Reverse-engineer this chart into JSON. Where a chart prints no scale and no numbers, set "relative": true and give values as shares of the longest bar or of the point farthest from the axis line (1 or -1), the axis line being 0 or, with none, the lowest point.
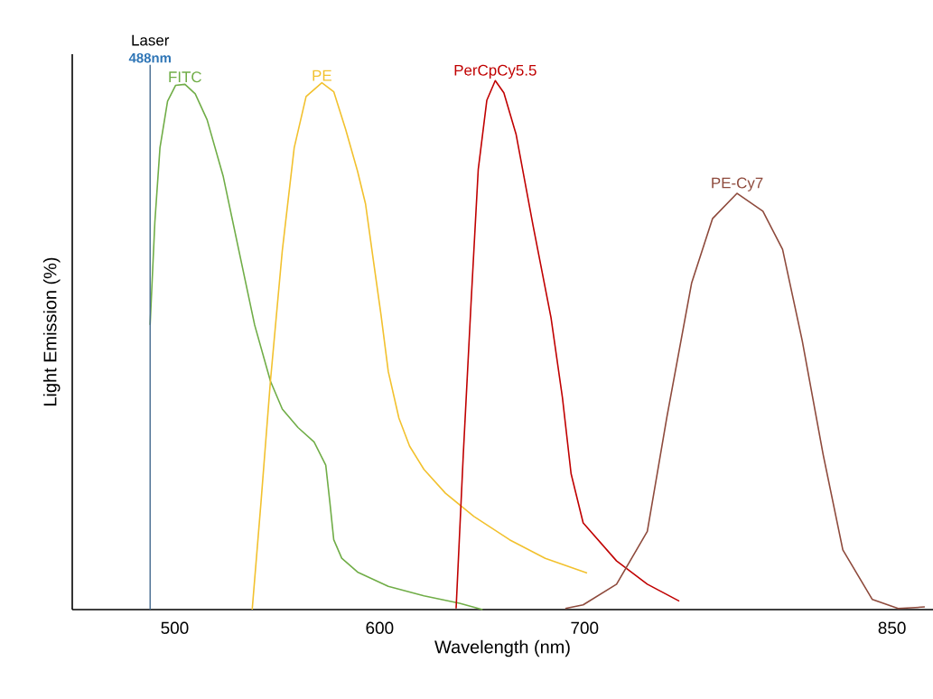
{
  "chart_data": {
    "type": "line",
    "relative": true,
    "xlabel": "Wavelength (nm)",
    "ylabel": "Light Emission (%)",
    "xlim": [
      450,
      870
    ],
    "xticks": [
      500,
      600,
      700,
      850
    ],
    "annotations": [
      "Laser"
    ],
    "ref_lines": [
      {
        "axis": "x",
        "value": 488,
        "label": "488nm",
        "color": "#44698f"
      }
    ],
    "series": [
      {
        "name": "FITC",
        "color": "#70ad47",
        "x": [
          488,
          490.3,
          492.8,
          496.5,
          500.4,
          505,
          510,
          515.8,
          523.6,
          531.3,
          539,
          546.7,
          552.5,
          560.2,
          568,
          573.7,
          575.7,
          577.6,
          581.5,
          589.2,
          604.2,
          621.6,
          639,
          650.2
        ],
        "values": [
          0.538,
          0.732,
          0.873,
          0.961,
          0.991,
          0.993,
          0.975,
          0.926,
          0.82,
          0.679,
          0.538,
          0.432,
          0.379,
          0.344,
          0.317,
          0.273,
          0.203,
          0.132,
          0.097,
          0.071,
          0.044,
          0.026,
          0.012,
          0
        ]
      },
      {
        "name": "PE",
        "color": "#f2c12e",
        "x": [
          537.8,
          542.1,
          546.7,
          552.5,
          558.3,
          564.1,
          571.8,
          577.6,
          583.4,
          589.2,
          593.1,
          596.9,
          600.7,
          604.2,
          609.4,
          614.6,
          621.6,
          632.1,
          646,
          663.4,
          680.8,
          701.2
        ],
        "values": [
          0,
          0.203,
          0.432,
          0.679,
          0.873,
          0.97,
          0.996,
          0.979,
          0.908,
          0.829,
          0.767,
          0.661,
          0.556,
          0.45,
          0.362,
          0.309,
          0.265,
          0.22,
          0.176,
          0.132,
          0.097,
          0.069
        ]
      },
      {
        "name": "PerCpCy5.5",
        "color": "#c00000",
        "x": [
          637.3,
          640.8,
          644.6,
          648.1,
          652.3,
          656.4,
          660.6,
          666.6,
          674.9,
          683.6,
          689.2,
          693.4,
          699.3,
          715.6,
          730.6,
          746.2
        ],
        "values": [
          0.002,
          0.293,
          0.58,
          0.832,
          0.963,
          1,
          0.977,
          0.898,
          0.725,
          0.552,
          0.4,
          0.257,
          0.164,
          0.092,
          0.048,
          0.016
        ]
      },
      {
        "name": "PE-Cy7",
        "color": "#8e4a3c",
        "x": [
          690.6,
          699.3,
          715.6,
          730.6,
          740.2,
          752.2,
          762.4,
          774.4,
          787,
          796.6,
          806.2,
          816.4,
          826,
          840.4,
          853,
          866
        ],
        "values": [
          0.002,
          0.009,
          0.048,
          0.148,
          0.365,
          0.617,
          0.739,
          0.787,
          0.753,
          0.681,
          0.508,
          0.293,
          0.113,
          0.019,
          0.002,
          0.005
        ]
      }
    ]
  }
}
